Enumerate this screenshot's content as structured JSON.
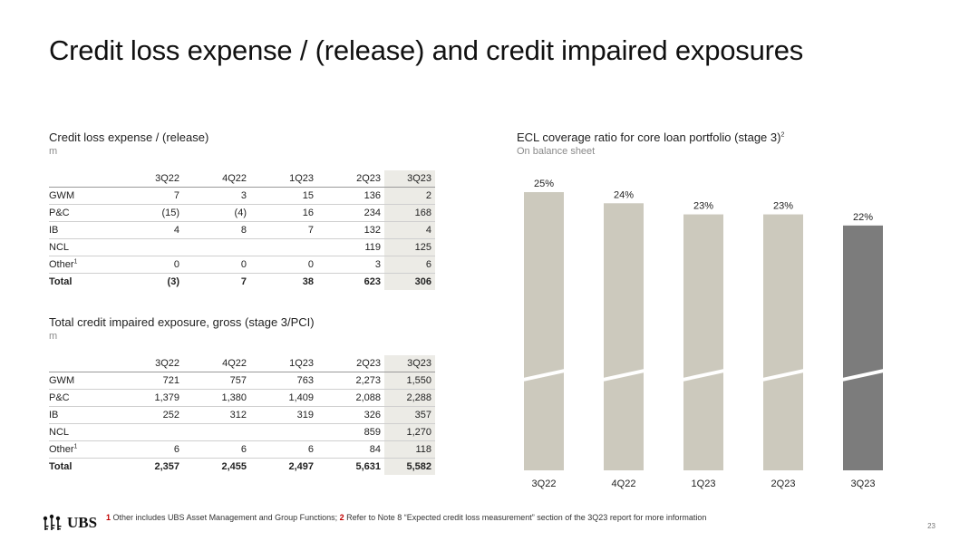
{
  "title": "Credit loss expense / (release) and credit impaired exposures",
  "table1": {
    "title": "Credit loss expense / (release)",
    "unit": "m",
    "headers": [
      "",
      "3Q22",
      "4Q22",
      "1Q23",
      "2Q23",
      "3Q23"
    ],
    "rows": [
      {
        "label": "GWM",
        "sup": "",
        "values": [
          "7",
          "3",
          "15",
          "136",
          "2"
        ]
      },
      {
        "label": "P&C",
        "sup": "",
        "values": [
          "(15)",
          "(4)",
          "16",
          "234",
          "168"
        ]
      },
      {
        "label": "IB",
        "sup": "",
        "values": [
          "4",
          "8",
          "7",
          "132",
          "4"
        ]
      },
      {
        "label": "NCL",
        "sup": "",
        "values": [
          "",
          "",
          "",
          "119",
          "125"
        ]
      },
      {
        "label": "Other",
        "sup": "1",
        "values": [
          "0",
          "0",
          "0",
          "3",
          "6"
        ]
      },
      {
        "label": "Total",
        "sup": "",
        "values": [
          "(3)",
          "7",
          "38",
          "623",
          "306"
        ],
        "bold": true
      }
    ]
  },
  "table2": {
    "title": "Total credit impaired exposure, gross (stage 3/PCI)",
    "unit": "m",
    "headers": [
      "",
      "3Q22",
      "4Q22",
      "1Q23",
      "2Q23",
      "3Q23"
    ],
    "rows": [
      {
        "label": "GWM",
        "sup": "",
        "values": [
          "721",
          "757",
          "763",
          "2,273",
          "1,550"
        ]
      },
      {
        "label": "P&C",
        "sup": "",
        "values": [
          "1,379",
          "1,380",
          "1,409",
          "2,088",
          "2,288"
        ]
      },
      {
        "label": "IB",
        "sup": "",
        "values": [
          "252",
          "312",
          "319",
          "326",
          "357"
        ]
      },
      {
        "label": "NCL",
        "sup": "",
        "values": [
          "",
          "",
          "",
          "859",
          "1,270"
        ]
      },
      {
        "label": "Other",
        "sup": "1",
        "values": [
          "6",
          "6",
          "6",
          "84",
          "118"
        ]
      },
      {
        "label": "Total",
        "sup": "",
        "values": [
          "2,357",
          "2,455",
          "2,497",
          "5,631",
          "5,582"
        ],
        "bold": true
      }
    ]
  },
  "chart_data": {
    "type": "bar",
    "title": "ECL coverage ratio for core loan portfolio (stage 3)",
    "title_sup": "2",
    "subtitle": "On balance sheet",
    "categories": [
      "3Q22",
      "4Q22",
      "1Q23",
      "2Q23",
      "3Q23"
    ],
    "values": [
      25,
      24,
      23,
      23,
      22
    ],
    "value_labels": [
      "25%",
      "24%",
      "23%",
      "23%",
      "22%"
    ],
    "axis_break": true,
    "grid": false,
    "colors": {
      "bar": "#ccc9bd",
      "highlight": "#7c7c7c"
    },
    "highlight_index": 4
  },
  "footnote": {
    "n1": "1",
    "t1": " Other includes UBS Asset Management and Group Functions; ",
    "n2": "2",
    "t2": " Refer to Note 8 “Expected credit loss measurement” section of the 3Q23 report for more information"
  },
  "logo": {
    "text": "UBS",
    "icon": "ubs-keys-icon"
  },
  "page_number": "23"
}
